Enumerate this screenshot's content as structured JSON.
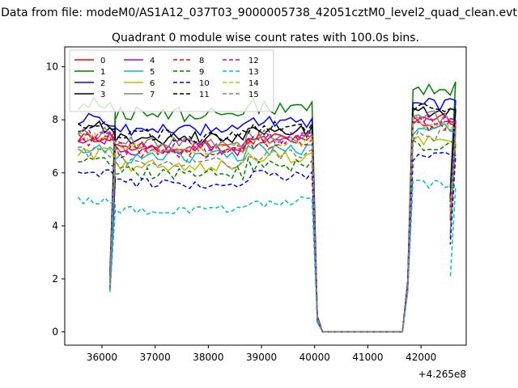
{
  "figure": {
    "suptitle": "Data from file: modeM0/AS1A12_037T03_9000005738_42051cztM0_level2_quad_clean.evt",
    "x_offset_label": "+4.265e8"
  },
  "chart_data": {
    "type": "line",
    "title": "Quadrant 0 module wise count rates with 100.0s bins.",
    "xlabel": "",
    "ylabel": "",
    "xlim": [
      35300,
      42850
    ],
    "ylim": [
      -0.5,
      10.75
    ],
    "x_ticks": [
      36000,
      37000,
      38000,
      39000,
      40000,
      41000,
      42000
    ],
    "x_tick_labels": [
      "36000",
      "37000",
      "38000",
      "39000",
      "40000",
      "41000",
      "42000"
    ],
    "y_ticks": [
      0,
      2,
      4,
      6,
      8,
      10
    ],
    "y_tick_labels": [
      "0",
      "2",
      "4",
      "6",
      "8",
      "10"
    ],
    "grid": false,
    "legend_position": "top-left",
    "legend_columns": 4,
    "segments": [
      {
        "x0": 35550,
        "count": 8
      },
      {
        "x0": 36150,
        "count": 25
      },
      {
        "x0": 39950,
        "count": 18
      },
      {
        "x0": 41750,
        "count": 9
      }
    ],
    "series": [
      {
        "name": "0",
        "color": "#ff0000",
        "dash": "solid",
        "base": 7.0,
        "noise": 0.25,
        "dip": 2.0,
        "drop": 0.5,
        "rise": 1.8
      },
      {
        "name": "1",
        "color": "#008000",
        "dash": "solid",
        "base": 8.2,
        "noise": 0.3,
        "dip": 2.2,
        "drop": 0.6,
        "rise": 1.9
      },
      {
        "name": "2",
        "color": "#0000ff",
        "dash": "solid",
        "base": 7.6,
        "noise": 0.25,
        "dip": 2.1,
        "drop": 0.55,
        "rise": 1.9
      },
      {
        "name": "3",
        "color": "#000000",
        "dash": "solid",
        "base": 7.3,
        "noise": 0.25,
        "dip": 2.0,
        "drop": 0.5,
        "rise": 1.8
      },
      {
        "name": "4",
        "color": "#bf00bf",
        "dash": "solid",
        "base": 6.9,
        "noise": 0.25,
        "dip": 2.0,
        "drop": 0.5,
        "rise": 1.7
      },
      {
        "name": "5",
        "color": "#00bfbf",
        "dash": "solid",
        "base": 6.6,
        "noise": 0.25,
        "dip": 1.9,
        "drop": 0.45,
        "rise": 1.7
      },
      {
        "name": "6",
        "color": "#bfbf00",
        "dash": "solid",
        "base": 6.3,
        "noise": 0.25,
        "dip": 1.8,
        "drop": 0.45,
        "rise": 1.7
      },
      {
        "name": "7",
        "color": "#808080",
        "dash": "solid",
        "base": 7.1,
        "noise": 0.25,
        "dip": 2.0,
        "drop": 0.5,
        "rise": 1.8
      },
      {
        "name": "8",
        "color": "#ff0000",
        "dash": "dashed",
        "base": 6.8,
        "noise": 0.25,
        "dip": 1.9,
        "drop": 0.5,
        "rise": 1.7
      },
      {
        "name": "9",
        "color": "#008000",
        "dash": "dashed",
        "base": 6.0,
        "noise": 0.25,
        "dip": 1.7,
        "drop": 0.45,
        "rise": 1.7
      },
      {
        "name": "10",
        "color": "#0000ff",
        "dash": "dashed",
        "base": 5.6,
        "noise": 0.2,
        "dip": 1.6,
        "drop": 0.4,
        "rise": 1.6
      },
      {
        "name": "11",
        "color": "#000000",
        "dash": "dashed",
        "base": 7.4,
        "noise": 0.25,
        "dip": 2.0,
        "drop": 0.5,
        "rise": 1.8
      },
      {
        "name": "12",
        "color": "#bf00bf",
        "dash": "dashed",
        "base": 7.0,
        "noise": 0.25,
        "dip": 2.0,
        "drop": 0.5,
        "rise": 1.8
      },
      {
        "name": "13",
        "color": "#00bfbf",
        "dash": "dashed",
        "base": 4.6,
        "noise": 0.2,
        "dip": 1.5,
        "drop": 0.35,
        "rise": 1.5
      },
      {
        "name": "14",
        "color": "#bfbf00",
        "dash": "dashed",
        "base": 6.9,
        "noise": 0.25,
        "dip": 1.9,
        "drop": 0.5,
        "rise": 1.7
      },
      {
        "name": "15",
        "color": "#808080",
        "dash": "dashed",
        "base": 6.4,
        "noise": 0.25,
        "dip": 1.8,
        "drop": 0.45,
        "rise": 1.7
      }
    ]
  }
}
